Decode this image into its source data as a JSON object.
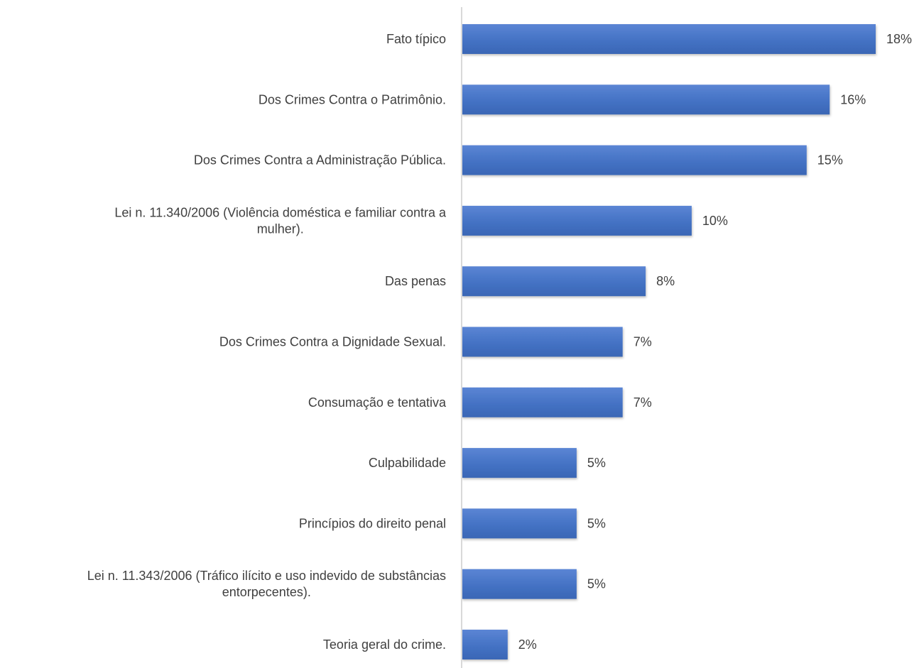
{
  "chart_data": {
    "type": "bar",
    "orientation": "horizontal",
    "categories": [
      "Fato típico",
      "Dos Crimes Contra o Patrimônio.",
      "Dos Crimes Contra a Administração Pública.",
      "Lei n. 11.340/2006 (Violência doméstica e familiar contra a mulher).",
      "Das penas",
      "Dos Crimes Contra a Dignidade Sexual.",
      "Consumação e tentativa",
      "Culpabilidade",
      "Princípios do direito penal",
      "Lei n. 11.343/2006 (Tráfico ilícito e uso indevido de substâncias entorpecentes).",
      "Teoria geral do crime."
    ],
    "category_lines": [
      [
        "Fato típico"
      ],
      [
        "Dos Crimes Contra o Patrimônio."
      ],
      [
        "Dos Crimes Contra a Administração Pública."
      ],
      [
        "Lei n. 11.340/2006 (Violência doméstica e familiar contra a",
        "mulher)."
      ],
      [
        "Das penas"
      ],
      [
        "Dos Crimes Contra a Dignidade Sexual."
      ],
      [
        "Consumação e tentativa"
      ],
      [
        "Culpabilidade"
      ],
      [
        "Princípios do direito penal"
      ],
      [
        "Lei n. 11.343/2006 (Tráfico ilícito e uso indevido de substâncias",
        "entorpecentes)."
      ],
      [
        "Teoria geral do crime."
      ]
    ],
    "values": [
      18,
      16,
      15,
      10,
      8,
      7,
      7,
      5,
      5,
      5,
      2
    ],
    "value_labels": [
      "18%",
      "16%",
      "15%",
      "10%",
      "8%",
      "7%",
      "7%",
      "5%",
      "5%",
      "5%",
      "2%"
    ],
    "unit": "%",
    "xlim": [
      0,
      20
    ],
    "title": "",
    "xlabel": "",
    "ylabel": "",
    "grid": false,
    "legend": "none",
    "colors": {
      "bar": "#4472C4",
      "bar_shade": "#3561B0",
      "axis": "#D9D9D9",
      "text": "#404040"
    }
  }
}
